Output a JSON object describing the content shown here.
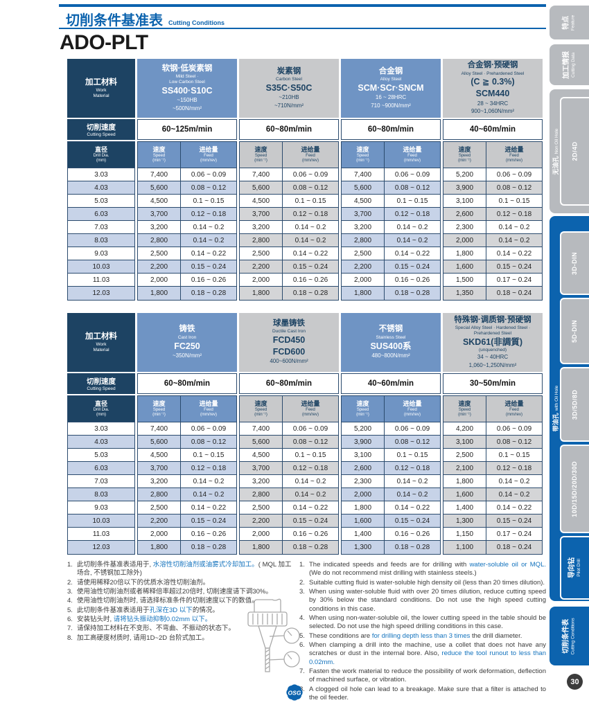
{
  "header": {
    "title_cn": "切削条件基准表",
    "title_en": "Cutting Conditions",
    "product": "ADO-PLT"
  },
  "col_labels": {
    "material_cn": "加工材料",
    "material_en1": "Work",
    "material_en2": "Material",
    "cutting_speed_cn": "切削速度",
    "cutting_speed_en": "Cutting Speed",
    "dia_cn": "直径",
    "dia_en": "Drill Dia.",
    "dia_unit": "(mm)",
    "speed_cn": "速度",
    "speed_en": "Speed",
    "speed_unit": "(min⁻¹)",
    "feed_cn": "进给量",
    "feed_en": "Feed",
    "feed_unit": "(mm/rev)"
  },
  "tables": [
    {
      "materials": [
        {
          "tone": "blue",
          "lines": [
            {
              "s": "cn",
              "t": "软钢·低炭素钢"
            },
            {
              "s": "en",
              "t": "Mild Steel ·"
            },
            {
              "s": "en",
              "t": "Low Carbon Steel"
            },
            {
              "s": "grade",
              "t": "SS400·S10C"
            },
            {
              "s": "spec",
              "t": "~150HB"
            },
            {
              "s": "spec",
              "t": "~500N/mm²"
            }
          ]
        },
        {
          "tone": "gray",
          "lines": [
            {
              "s": "cn",
              "t": "炭素钢"
            },
            {
              "s": "en",
              "t": "Carbon Steel"
            },
            {
              "s": "grade",
              "t": "S35C·S50C"
            },
            {
              "s": "spec",
              "t": "~210HB"
            },
            {
              "s": "spec",
              "t": "~710N/mm²"
            }
          ]
        },
        {
          "tone": "blue",
          "lines": [
            {
              "s": "cn",
              "t": "合金钢"
            },
            {
              "s": "en",
              "t": "Alloy Steel"
            },
            {
              "s": "grade",
              "t": "SCM·SCr·SNCM"
            },
            {
              "s": "spec",
              "t": "16 ~ 28HRC"
            },
            {
              "s": "spec",
              "t": "710 ~900N/mm²"
            }
          ]
        },
        {
          "tone": "gray",
          "lines": [
            {
              "s": "cn",
              "t": "合金钢·预硬钢"
            },
            {
              "s": "en",
              "t": "Alloy Steel · Prehardened Steel"
            },
            {
              "s": "grade",
              "t": "(C ≧ 0.3%)"
            },
            {
              "s": "grade",
              "t": "SCM440"
            },
            {
              "s": "spec",
              "t": "28 ~ 34HRC"
            },
            {
              "s": "spec",
              "t": "900~1,060N/mm²"
            }
          ]
        }
      ],
      "speeds": [
        "60~125m/min",
        "60~80m/min",
        "60~80m/min",
        "40~60m/min"
      ],
      "rows": [
        {
          "dia": "3.03",
          "v": [
            "7,400",
            "0.06 ~ 0.09",
            "7,400",
            "0.06 ~ 0.09",
            "7,400",
            "0.06 ~ 0.09",
            "5,200",
            "0.06 ~ 0.09"
          ]
        },
        {
          "dia": "4.03",
          "v": [
            "5,600",
            "0.08 ~ 0.12",
            "5,600",
            "0.08 ~ 0.12",
            "5,600",
            "0.08 ~ 0.12",
            "3,900",
            "0.08 ~ 0.12"
          ]
        },
        {
          "dia": "5.03",
          "v": [
            "4,500",
            "0.1 ~ 0.15",
            "4,500",
            "0.1 ~ 0.15",
            "4,500",
            "0.1 ~ 0.15",
            "3,100",
            "0.1 ~ 0.15"
          ]
        },
        {
          "dia": "6.03",
          "v": [
            "3,700",
            "0.12 ~ 0.18",
            "3,700",
            "0.12 ~ 0.18",
            "3,700",
            "0.12 ~ 0.18",
            "2,600",
            "0.12 ~ 0.18"
          ]
        },
        {
          "dia": "7.03",
          "v": [
            "3,200",
            "0.14 ~ 0.2",
            "3,200",
            "0.14 ~ 0.2",
            "3,200",
            "0.14 ~ 0.2",
            "2,300",
            "0.14 ~ 0.2"
          ]
        },
        {
          "dia": "8.03",
          "v": [
            "2,800",
            "0.14 ~ 0.2",
            "2,800",
            "0.14 ~ 0.2",
            "2,800",
            "0.14 ~ 0.2",
            "2,000",
            "0.14 ~ 0.2"
          ]
        },
        {
          "dia": "9.03",
          "v": [
            "2,500",
            "0.14 ~ 0.22",
            "2,500",
            "0.14 ~ 0.22",
            "2,500",
            "0.14 ~ 0.22",
            "1,800",
            "0.14 ~ 0.22"
          ]
        },
        {
          "dia": "10.03",
          "v": [
            "2,200",
            "0.15 ~ 0.24",
            "2,200",
            "0.15 ~ 0.24",
            "2,200",
            "0.15 ~ 0.24",
            "1,600",
            "0.15 ~ 0.24"
          ]
        },
        {
          "dia": "11.03",
          "v": [
            "2,000",
            "0.16 ~ 0.26",
            "2,000",
            "0.16 ~ 0.26",
            "2,000",
            "0.16 ~ 0.26",
            "1,500",
            "0.17 ~ 0.24"
          ]
        },
        {
          "dia": "12.03",
          "v": [
            "1,800",
            "0.18 ~ 0.28",
            "1,800",
            "0.18 ~ 0.28",
            "1,800",
            "0.18 ~ 0.28",
            "1,350",
            "0.18 ~ 0.24"
          ]
        }
      ]
    },
    {
      "materials": [
        {
          "tone": "blue",
          "lines": [
            {
              "s": "cn",
              "t": "铸铁"
            },
            {
              "s": "en",
              "t": "Cast Iron"
            },
            {
              "s": "grade",
              "t": "FC250"
            },
            {
              "s": "spec",
              "t": "~350N/mm²"
            }
          ]
        },
        {
          "tone": "gray",
          "lines": [
            {
              "s": "cn",
              "t": "球墨铸铁"
            },
            {
              "s": "en",
              "t": "Ductile Cast Iron"
            },
            {
              "s": "grade",
              "t": "FCD450"
            },
            {
              "s": "grade",
              "t": "FCD600"
            },
            {
              "s": "spec",
              "t": "400~600N/mm²"
            }
          ]
        },
        {
          "tone": "blue",
          "lines": [
            {
              "s": "cn",
              "t": "不锈钢"
            },
            {
              "s": "en",
              "t": "Stainless Steel"
            },
            {
              "s": "grade",
              "t": "SUS400系"
            },
            {
              "s": "spec",
              "t": "480~800N/mm²"
            }
          ]
        },
        {
          "tone": "gray",
          "lines": [
            {
              "s": "cn",
              "t": "特殊钢·调质钢·预硬钢"
            },
            {
              "s": "en",
              "t": "Special Alloy Steel · Hardened Steel ·"
            },
            {
              "s": "en",
              "t": "Prehardened Steel"
            },
            {
              "s": "grade",
              "t": "SKD61(非調質)"
            },
            {
              "s": "en",
              "t": "(unquenched)"
            },
            {
              "s": "spec",
              "t": "34 ~ 40HRC"
            },
            {
              "s": "spec",
              "t": "1,060~1,250N/mm²"
            }
          ]
        }
      ],
      "speeds": [
        "60~80m/min",
        "60~80m/min",
        "40~60m/min",
        "30~50m/min"
      ],
      "rows": [
        {
          "dia": "3.03",
          "v": [
            "7,400",
            "0.06 ~ 0.09",
            "7,400",
            "0.06 ~ 0.09",
            "5,200",
            "0.06 ~ 0.09",
            "4,200",
            "0.06 ~ 0.09"
          ]
        },
        {
          "dia": "4.03",
          "v": [
            "5,600",
            "0.08 ~ 0.12",
            "5,600",
            "0.08 ~ 0.12",
            "3,900",
            "0.08 ~ 0.12",
            "3,100",
            "0.08 ~ 0.12"
          ]
        },
        {
          "dia": "5.03",
          "v": [
            "4,500",
            "0.1 ~ 0.15",
            "4,500",
            "0.1 ~ 0.15",
            "3,100",
            "0.1 ~ 0.15",
            "2,500",
            "0.1 ~ 0.15"
          ]
        },
        {
          "dia": "6.03",
          "v": [
            "3,700",
            "0.12 ~ 0.18",
            "3,700",
            "0.12 ~ 0.18",
            "2,600",
            "0.12 ~ 0.18",
            "2,100",
            "0.12 ~ 0.18"
          ]
        },
        {
          "dia": "7.03",
          "v": [
            "3,200",
            "0.14 ~ 0.2",
            "3,200",
            "0.14 ~ 0.2",
            "2,300",
            "0.14 ~ 0.2",
            "1,800",
            "0.14 ~ 0.2"
          ]
        },
        {
          "dia": "8.03",
          "v": [
            "2,800",
            "0.14 ~ 0.2",
            "2,800",
            "0.14 ~ 0.2",
            "2,000",
            "0.14 ~ 0.2",
            "1,600",
            "0.14 ~ 0.2"
          ]
        },
        {
          "dia": "9.03",
          "v": [
            "2,500",
            "0.14 ~ 0.22",
            "2,500",
            "0.14 ~ 0.22",
            "1,800",
            "0.14 ~ 0.22",
            "1,400",
            "0.14 ~ 0.22"
          ]
        },
        {
          "dia": "10.03",
          "v": [
            "2,200",
            "0.15 ~ 0.24",
            "2,200",
            "0.15 ~ 0.24",
            "1,600",
            "0.15 ~ 0.24",
            "1,300",
            "0.15 ~ 0.24"
          ]
        },
        {
          "dia": "11.03",
          "v": [
            "2,000",
            "0.16 ~ 0.26",
            "2,000",
            "0.16 ~ 0.26",
            "1,400",
            "0.16 ~ 0.26",
            "1,150",
            "0.17 ~ 0.24"
          ]
        },
        {
          "dia": "12.03",
          "v": [
            "1,800",
            "0.18 ~ 0.28",
            "1,800",
            "0.18 ~ 0.28",
            "1,300",
            "0.18 ~ 0.28",
            "1,100",
            "0.18 ~ 0.24"
          ]
        }
      ]
    }
  ],
  "notes_cn": [
    {
      "num": "1.",
      "segs": [
        {
          "t": "此切削条件基准表适用于, "
        },
        {
          "t": "水溶性切削油剂或油雾式冷却加工。",
          "hl": true
        },
        {
          "t": "( MQL 加工场合, 不锈钢加工除外)"
        }
      ]
    },
    {
      "num": "2.",
      "segs": [
        {
          "t": "请使用稀释20倍以下的优质水溶性切削油剂。"
        }
      ]
    },
    {
      "num": "3.",
      "segs": [
        {
          "t": "使用油性切削油剂或者稀释倍率超过20倍时, 切削速度请下调30%。"
        }
      ]
    },
    {
      "num": "4.",
      "segs": [
        {
          "t": "使用油性切削油剂时, 请选择标准条件的切削速度以下的数值。"
        }
      ]
    },
    {
      "num": "5.",
      "segs": [
        {
          "t": "此切削条件基准表适用于"
        },
        {
          "t": "孔深在3D 以下",
          "hl": true
        },
        {
          "t": "的情况。"
        }
      ]
    },
    {
      "num": "6.",
      "segs": [
        {
          "t": "安装钻头时, "
        },
        {
          "t": "请将钻头振动抑制0.02mm 以下。",
          "hl": true
        }
      ]
    },
    {
      "num": "7.",
      "segs": [
        {
          "t": "请保持加工材料在不变形、不弯曲、不振动的状态下。"
        }
      ]
    },
    {
      "num": "8.",
      "segs": [
        {
          "t": "加工高硬度材质时, 请用1D~2D 台阶式加工。"
        }
      ]
    }
  ],
  "notes_en": [
    {
      "num": "1.",
      "segs": [
        {
          "t": "The indicated speeds and feeds are for drilling with "
        },
        {
          "t": "water-soluble oil or MQL.",
          "hl": true
        },
        {
          "t": " (We do not recommend mist drilling with stainless steels.)"
        }
      ]
    },
    {
      "num": "2.",
      "segs": [
        {
          "t": "Suitable cutting fluid is water-soluble high density oil (less than 20 times dilution)."
        }
      ]
    },
    {
      "num": "3.",
      "segs": [
        {
          "t": "When using water-soluble fluid with over 20 times dilution, reduce cutting speed by 30% below the standard conditions.  Do not use the high speed cutting conditions in this case."
        }
      ]
    },
    {
      "num": "4.",
      "segs": [
        {
          "t": "When using non-water-soluble oil, the lower cutting speed in the table should be selected. Do not use the high speed drilling conditions in this case."
        }
      ]
    },
    {
      "num": "5.",
      "segs": [
        {
          "t": "These conditions are "
        },
        {
          "t": "for drilling depth less than 3 times",
          "hl": true
        },
        {
          "t": " the drill diameter."
        }
      ]
    },
    {
      "num": "6.",
      "segs": [
        {
          "t": "When clamping a drill into the machine, use a collet that does not have any scratches or dust in the internal bore.  Also, "
        },
        {
          "t": "reduce the tool runout to less than 0.02mm.",
          "hl": true
        }
      ]
    },
    {
      "num": "7.",
      "segs": [
        {
          "t": "Fasten the work material to reduce the possibility of work deformation, deflection of machined surface, or vibration."
        }
      ]
    },
    {
      "num": "8.",
      "segs": [
        {
          "t": "A clogged oil hole can lead to a breakage. Make sure that a filter is attached to the oil feeder."
        }
      ]
    }
  ],
  "sidebar": {
    "feature": {
      "cn": "特点",
      "en": "Feature"
    },
    "cutting_data": {
      "cn": "加工情报",
      "en": "Cutting Data"
    },
    "non_oil": {
      "cn": "无油孔",
      "en": "Non Oil Hole",
      "sub": "2D/4D"
    },
    "with_oil": {
      "cn": "带油孔",
      "en": "with Oil Hole",
      "subs": [
        "3D-DIN",
        "5D-DIN",
        "3D/5D/8D",
        "10D/15D/20D/30D"
      ],
      "pilot": {
        "cn": "导向钻",
        "en": "Pilot Drill"
      }
    },
    "cutting_conditions": {
      "cn": "切削条件表",
      "en": "Cutting Conditions"
    }
  },
  "footer": {
    "page_number": "30",
    "logo": "OSG"
  },
  "colors": {
    "brand_blue": "#0c63ae",
    "table_navy": "#1d4363",
    "column_blue": "#6f94c4",
    "row_blue": "#c7d3e8",
    "row_gray": "#d4d5d7",
    "note_highlight": "#1272bd",
    "sidebar_gray": "#b7babe"
  }
}
